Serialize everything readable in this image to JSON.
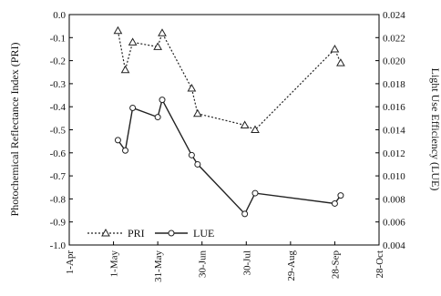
{
  "chart_data": {
    "type": "line",
    "x_ticks": [
      "1-Apr",
      "1-May",
      "31-May",
      "30-Jun",
      "30-Jul",
      "29-Aug",
      "28-Sep",
      "28-Oct"
    ],
    "ylabel_left": "Photochemical Reflectance Index (PRI)",
    "ylabel_right": "Light Use Efficiency (LUE)",
    "ylim_left": [
      -1.0,
      0.0
    ],
    "ylim_right": [
      0.004,
      0.024
    ],
    "yticks_left": [
      "0.0",
      "-0.1",
      "-0.2",
      "-0.3",
      "-0.4",
      "-0.5",
      "-0.6",
      "-0.7",
      "-0.8",
      "-0.9",
      "-1.0"
    ],
    "yticks_right": [
      "0.024",
      "0.022",
      "0.020",
      "0.018",
      "0.016",
      "0.014",
      "0.012",
      "0.010",
      "0.008",
      "0.006",
      "0.004"
    ],
    "legend_position": "bottom-left",
    "grid": false,
    "series": [
      {
        "name": "PRI",
        "axis": "left",
        "style": "dotted",
        "marker": "triangle",
        "x": [
          "2008-05-04",
          "2008-05-09",
          "2008-05-14",
          "2008-05-31",
          "2008-06-03",
          "2008-06-23",
          "2008-06-27",
          "2008-07-29",
          "2008-08-05",
          "2008-09-28",
          "2008-10-02"
        ],
        "y": [
          -0.07,
          -0.24,
          -0.12,
          -0.14,
          -0.08,
          -0.32,
          -0.43,
          -0.48,
          -0.5,
          -0.15,
          -0.21
        ]
      },
      {
        "name": "LUE",
        "axis": "right",
        "style": "solid",
        "marker": "circle",
        "x": [
          "2008-05-04",
          "2008-05-09",
          "2008-05-14",
          "2008-05-31",
          "2008-06-03",
          "2008-06-23",
          "2008-06-27",
          "2008-07-29",
          "2008-08-05",
          "2008-09-28",
          "2008-10-02"
        ],
        "y": [
          0.0131,
          0.0122,
          0.0159,
          0.0151,
          0.0166,
          0.0118,
          0.011,
          0.0067,
          0.0085,
          0.0076,
          0.0083
        ]
      }
    ]
  }
}
